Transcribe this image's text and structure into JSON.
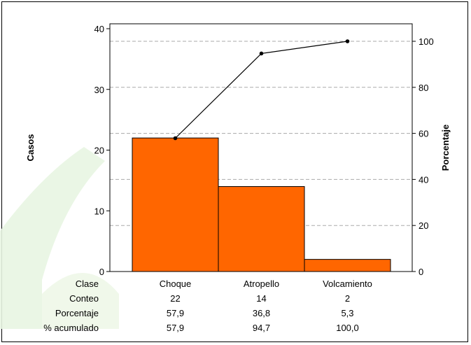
{
  "chart_data": {
    "type": "bar",
    "subtype": "pareto",
    "categories": [
      "Choque",
      "Atropello",
      "Volcamiento"
    ],
    "values": [
      22,
      14,
      2
    ],
    "cumulative_percent": [
      57.9,
      94.7,
      100.0
    ],
    "ylabel_left": "Casos",
    "ylabel_right": "Porcentaje",
    "ylim_left": [
      0,
      40
    ],
    "ylim_right": [
      0,
      100
    ],
    "yticks_left": [
      "0",
      "10",
      "20",
      "30",
      "40"
    ],
    "yticks_right": [
      "0",
      "20",
      "40",
      "60",
      "80",
      "100"
    ],
    "grid": "dashed horizontal",
    "bar_color": "#ff6600",
    "line_color": "#000000",
    "table": {
      "row_labels": [
        "Clase",
        "Conteo",
        "Porcentaje",
        "% acumulado"
      ],
      "rows": [
        [
          "Choque",
          "Atropello",
          "Volcamiento"
        ],
        [
          "22",
          "14",
          "2"
        ],
        [
          "57,9",
          "36,8",
          "5,3"
        ],
        [
          "57,9",
          "94,7",
          "100,0"
        ]
      ]
    }
  }
}
